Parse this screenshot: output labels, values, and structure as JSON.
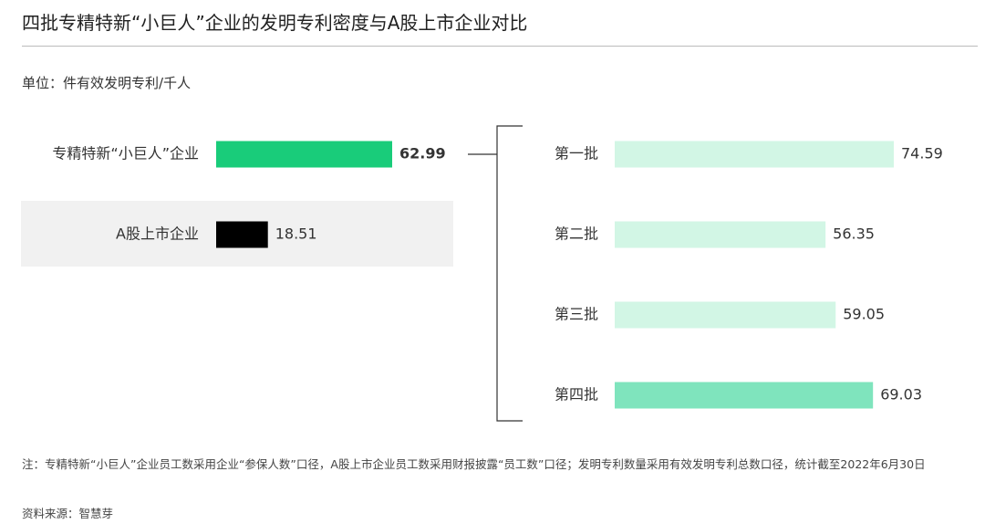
{
  "header": {
    "title": "四批专精特新“小巨人”企业的发明专利密度与A股上市企业对比",
    "unit": "单位：件有效发明专利/千人"
  },
  "chart_data": [
    {
      "type": "hbar",
      "categories": [
        "专精特新“小巨人”企业",
        "A股上市企业"
      ],
      "values": [
        62.99,
        18.51
      ],
      "colors": [
        "#19cc7a",
        "#000000"
      ],
      "label_colors": [
        "#19cc7a",
        "#333333"
      ]
    },
    {
      "type": "hbar",
      "categories": [
        "第一批",
        "第二批",
        "第三批",
        "第四批"
      ],
      "values": [
        74.59,
        56.35,
        59.05,
        69.03
      ],
      "colors": [
        "#d2f6e5",
        "#d2f6e5",
        "#d2f6e5",
        "#7fe4bd"
      ],
      "label_colors": [
        "#333333",
        "#333333",
        "#333333",
        "#333333"
      ]
    }
  ],
  "footer": {
    "note": "注：专精特新“小巨人”企业员工数采用企业“参保人数”口径，A股上市企业员工数采用财报披露“员工数”口径；发明专利数量采用有效发明专利总数口径，统计截至2022年6月30日",
    "source": "资料来源：智慧芽"
  }
}
